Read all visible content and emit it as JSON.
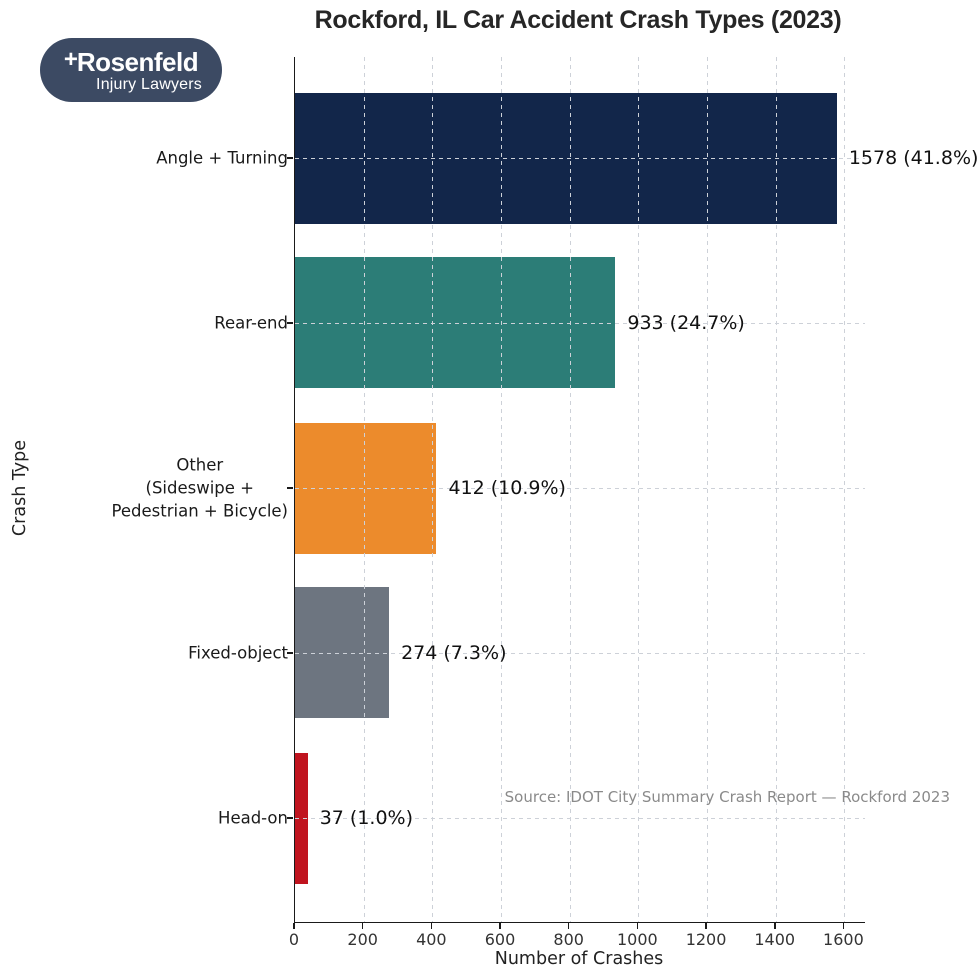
{
  "page": {
    "background": "#ffffff"
  },
  "logo": {
    "brand": "Rosenfeld",
    "tagline": "Injury Lawyers",
    "cross_icon": "+",
    "bg_color": "#3c4a63"
  },
  "header": {
    "title": "Rockford, IL Car Accident Crash Types (2023)"
  },
  "source_note": "Source: IDOT City Summary Crash Report — Rockford 2023",
  "chart_data": {
    "type": "bar",
    "orientation": "horizontal",
    "title": "Rockford, IL Car Accident Crash Types (2023)",
    "xlabel": "Number of Crashes",
    "ylabel": "Crash Type",
    "xlim": [
      0,
      1660
    ],
    "xticks": [
      0,
      200,
      400,
      600,
      800,
      1000,
      1200,
      1400,
      1600
    ],
    "grid": true,
    "grid_style": "dashed",
    "legend": false,
    "categories": [
      "Angle + Turning",
      "Rear-end",
      "Other\n(Sideswipe +\nPedestrian + Bicycle)",
      "Fixed-object",
      "Head-on"
    ],
    "values": [
      1578,
      933,
      412,
      274,
      37
    ],
    "percentages": [
      41.8,
      24.7,
      10.9,
      7.3,
      1.0
    ],
    "bar_labels": [
      "1578 (41.8%)",
      "933 (24.7%)",
      "412 (10.9%)",
      "274 (7.3%)",
      "37 (1.0%)"
    ],
    "bar_colors": [
      "#12264a",
      "#2c7d77",
      "#ec8b2c",
      "#6d7580",
      "#c0141f"
    ]
  }
}
